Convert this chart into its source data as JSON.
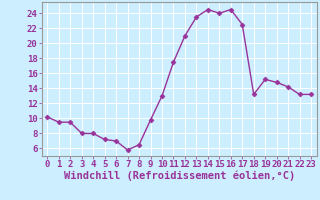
{
  "x": [
    0,
    1,
    2,
    3,
    4,
    5,
    6,
    7,
    8,
    9,
    10,
    11,
    12,
    13,
    14,
    15,
    16,
    17,
    18,
    19,
    20,
    21,
    22,
    23
  ],
  "y": [
    10.2,
    9.5,
    9.5,
    8.0,
    8.0,
    7.2,
    7.0,
    5.8,
    6.5,
    9.8,
    13.0,
    17.5,
    21.0,
    23.5,
    24.5,
    24.0,
    24.5,
    22.5,
    13.2,
    15.2,
    14.8,
    14.2,
    13.2,
    13.2
  ],
  "line_color": "#993399",
  "marker": "D",
  "marker_size": 2.5,
  "bg_color": "#cceeff",
  "grid_color": "#aaddcc",
  "xlabel": "Windchill (Refroidissement éolien,°C)",
  "xlabel_color": "#993399",
  "tick_color": "#993399",
  "spine_color": "#999999",
  "xlim": [
    -0.5,
    23.5
  ],
  "ylim": [
    5.0,
    25.5
  ],
  "yticks": [
    6,
    8,
    10,
    12,
    14,
    16,
    18,
    20,
    22,
    24
  ],
  "xticks": [
    0,
    1,
    2,
    3,
    4,
    5,
    6,
    7,
    8,
    9,
    10,
    11,
    12,
    13,
    14,
    15,
    16,
    17,
    18,
    19,
    20,
    21,
    22,
    23
  ],
  "tick_fontsize": 6.5,
  "xlabel_fontsize": 7.5,
  "linewidth": 1.0
}
